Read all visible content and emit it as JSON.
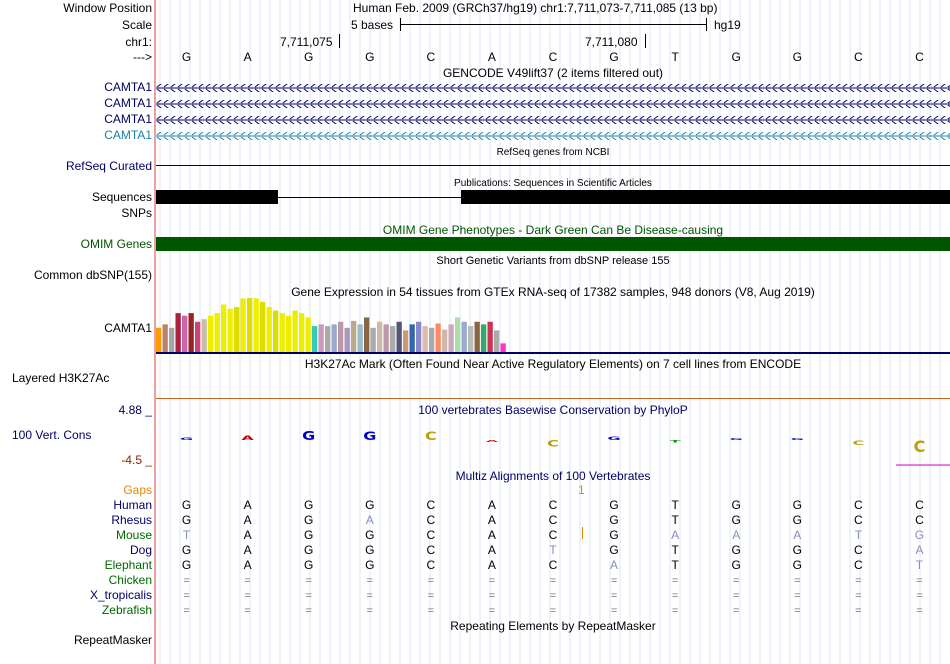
{
  "header": {
    "window_position_label": "Window Position",
    "window_position_value": "Human Feb. 2009 (GRCh37/hg19)   chr1:7,711,073-7,711,085 (13 bp)",
    "scale_label": "Scale",
    "scale_value": "5 bases",
    "scale_db": "hg19",
    "chr_label": "chr1:",
    "pos1": "7,711,075",
    "pos2": "7,711,080",
    "strand_label": "--->"
  },
  "bases": [
    "G",
    "A",
    "G",
    "G",
    "C",
    "A",
    "C",
    "G",
    "T",
    "G",
    "G",
    "C",
    "C"
  ],
  "tracks": {
    "gencode_title": "GENCODE V49lift37 (2 items filtered out)",
    "gencode_items": [
      "CAMTA1",
      "CAMTA1",
      "CAMTA1",
      "CAMTA1"
    ],
    "refseq_label": "RefSeq Curated",
    "refseq_title": "RefSeq genes from NCBI",
    "pubs_title": "Publications: Sequences in Scientific Articles",
    "pubs_label1": "Sequences",
    "pubs_label2": "SNPs",
    "omim_title": "OMIM Gene Phenotypes - Dark Green Can Be Disease-causing",
    "omim_label": "OMIM Genes",
    "dbsnp_title": "Short Genetic Variants from dbSNP release 155",
    "dbsnp_label": "Common dbSNP(155)",
    "gtex_title": "Gene Expression in 54 tissues from GTEx RNA-seq of 17382 samples, 948 donors (V8, Aug 2019)",
    "gtex_label": "CAMTA1",
    "h3k27_title": "H3K27Ac Mark (Often Found Near Active Regulatory Elements) on 7 cell lines from ENCODE",
    "h3k27_label": "Layered H3K27Ac",
    "phylop_title": "100 vertebrates Basewise Conservation by PhyloP",
    "phylop_label": "100 Vert. Cons",
    "phylop_max": "4.88 _",
    "phylop_min": "-4.5 _",
    "multiz_title": "Multiz Alignments of 100 Vertebrates",
    "gaps_label": "Gaps",
    "gaps_value": "1",
    "repeat_title": "Repeating Elements by RepeatMasker",
    "repeat_label": "RepeatMasker"
  },
  "gtex_values": [
    0.28,
    0.32,
    0.28,
    0.45,
    0.42,
    0.45,
    0.35,
    0.38,
    0.42,
    0.45,
    0.55,
    0.5,
    0.52,
    0.62,
    0.67,
    0.62,
    0.58,
    0.52,
    0.48,
    0.45,
    0.42,
    0.48,
    0.45,
    0.4,
    0.3,
    0.32,
    0.3,
    0.32,
    0.35,
    0.28,
    0.36,
    0.32,
    0.4,
    0.28,
    0.35,
    0.32,
    0.3,
    0.35,
    0.25,
    0.32,
    0.35,
    0.3,
    0.28,
    0.33,
    0.26,
    0.32,
    0.4,
    0.35,
    0.3,
    0.35,
    0.32,
    0.35,
    0.25,
    0.1
  ],
  "gtex_colors": [
    "#ff9900",
    "#b8826b",
    "#a6a6a6",
    "#aa2244",
    "#cc66aa",
    "#992222",
    "#cc4477",
    "#ccbbaa",
    "#eeee00",
    "#eeee00",
    "#eeee00",
    "#eeee00",
    "#dddd00",
    "#eeee00",
    "#dddd00",
    "#eeee00",
    "#dddd00",
    "#eeee00",
    "#dddd00",
    "#eeee00",
    "#eeee00",
    "#eeee00",
    "#eeee00",
    "#eeee00",
    "#33ccbb",
    "#cc99bb",
    "#aaaaaa",
    "#99aacc",
    "#bb99aa",
    "#aa99bb",
    "#bbaa88",
    "#99bbcc",
    "#886644",
    "#aaaaaa",
    "#ccbbaa",
    "#bb99aa",
    "#aaaaaa",
    "#555577",
    "#cc9977",
    "#3366aa",
    "#8888cc",
    "#ddbbaa",
    "#aaaaaa",
    "#ff8866",
    "#ccbbaa",
    "#ccaabb",
    "#aaddaa",
    "#99aacc",
    "#bbbbbb",
    "#886644",
    "#33aa66",
    "#cc3355",
    "#aaaaaa",
    "#ff33cc"
  ],
  "phylop_values": [
    0.3,
    0.6,
    1.2,
    1.1,
    1.1,
    -0.2,
    -0.8,
    0.4,
    -0.3,
    0.2,
    0.0,
    -0.6,
    -1.5
  ],
  "multiz": {
    "species": [
      "Human",
      "Rhesus",
      "Mouse",
      "Dog",
      "Elephant",
      "Chicken",
      "X_tropicalis",
      "Zebrafish"
    ],
    "species_colors": [
      "#000066",
      "#000066",
      "#006600",
      "#000066",
      "#006600",
      "#006600",
      "#000066",
      "#006600"
    ],
    "rows": [
      [
        "G",
        "A",
        "G",
        "G",
        "C",
        "A",
        "C",
        "G",
        "T",
        "G",
        "G",
        "C",
        "C"
      ],
      [
        "G",
        "A",
        "G",
        "A",
        "C",
        "A",
        "C",
        "G",
        "T",
        "G",
        "G",
        "C",
        "C"
      ],
      [
        "T",
        "A",
        "G",
        "G",
        "C",
        "A",
        "C",
        "G",
        "A",
        "A",
        "A",
        "T",
        "G"
      ],
      [
        "G",
        "A",
        "G",
        "G",
        "C",
        "A",
        "T",
        "G",
        "T",
        "G",
        "G",
        "C",
        "A"
      ],
      [
        "G",
        "A",
        "G",
        "G",
        "C",
        "A",
        "C",
        "A",
        "T",
        "G",
        "G",
        "C",
        "T"
      ],
      [
        "=",
        "=",
        "=",
        "=",
        "=",
        "=",
        "=",
        "=",
        "=",
        "=",
        "=",
        "=",
        "="
      ],
      [
        "=",
        "=",
        "=",
        "=",
        "=",
        "=",
        "=",
        "=",
        "=",
        "=",
        "=",
        "=",
        "="
      ],
      [
        "=",
        "=",
        "=",
        "=",
        "=",
        "=",
        "=",
        "=",
        "=",
        "=",
        "=",
        "=",
        "="
      ]
    ],
    "mismatch": [
      [
        0,
        0,
        0,
        0,
        0,
        0,
        0,
        0,
        0,
        0,
        0,
        0,
        0
      ],
      [
        0,
        0,
        0,
        1,
        0,
        0,
        0,
        0,
        0,
        0,
        0,
        0,
        0
      ],
      [
        1,
        0,
        0,
        0,
        0,
        0,
        0,
        0,
        1,
        1,
        1,
        1,
        1
      ],
      [
        0,
        0,
        0,
        0,
        0,
        0,
        1,
        0,
        0,
        0,
        0,
        0,
        1
      ],
      [
        0,
        0,
        0,
        0,
        0,
        0,
        0,
        1,
        0,
        0,
        0,
        0,
        1
      ],
      [
        0,
        0,
        0,
        0,
        0,
        0,
        0,
        0,
        0,
        0,
        0,
        0,
        0
      ],
      [
        0,
        0,
        0,
        0,
        0,
        0,
        0,
        0,
        0,
        0,
        0,
        0,
        0
      ],
      [
        0,
        0,
        0,
        0,
        0,
        0,
        0,
        0,
        0,
        0,
        0,
        0,
        0
      ]
    ]
  },
  "colors": {
    "gencode": "#000066",
    "gencode_alt": "#1c80a8",
    "refseq": "#000066",
    "omim": "#005500",
    "multiz_title": "#000066",
    "gaps": "#e08a00",
    "phylop_pos": "#000066",
    "phylop_neg": "#8b2500"
  }
}
